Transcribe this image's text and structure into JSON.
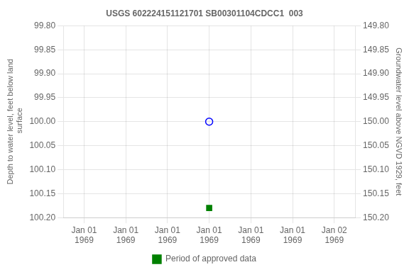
{
  "chart_data": {
    "type": "scatter",
    "title": "USGS 602224151121701 SB00301104CDCC1  003",
    "categories": [
      "Jan 01\n1969",
      "Jan 01\n1969",
      "Jan 01\n1969",
      "Jan 01\n1969",
      "Jan 01\n1969",
      "Jan 01\n1969",
      "Jan 02\n1969"
    ],
    "ylabel": "Depth to water level, feet below land\n surface",
    "y2label": "Groundwater level above NGVD 1929, feet",
    "ylim": [
      100.2,
      99.8
    ],
    "yticks": [
      {
        "value": 99.8,
        "label": "99.80"
      },
      99.85,
      {
        "value": 99.9,
        "label": "99.90"
      },
      99.95,
      {
        "value": 100.0,
        "label": "100.00"
      },
      100.05,
      {
        "value": 100.1,
        "label": "100.10"
      },
      100.15,
      {
        "value": 100.2,
        "label": "100.20"
      }
    ],
    "y2lim": [
      150.2,
      149.8
    ],
    "y2ticks": [
      {
        "value": 149.8,
        "label": "149.80"
      },
      149.85,
      {
        "value": 149.9,
        "label": "149.90"
      },
      149.95,
      {
        "value": 150.0,
        "label": "150.00"
      },
      150.05,
      {
        "value": 150.1,
        "label": "150.10"
      },
      150.15,
      {
        "value": 150.2,
        "label": "150.20"
      }
    ],
    "series": [
      {
        "color": "#0000ff",
        "marker": "circle-open",
        "values": [
          null,
          null,
          null,
          100.0,
          null,
          null,
          null
        ]
      },
      {
        "name": "Period of approved data",
        "color": "#008000",
        "marker": "square",
        "values": [
          null,
          null,
          null,
          100.18,
          null,
          null,
          null
        ]
      }
    ],
    "grid": true,
    "legend": "bottom"
  }
}
